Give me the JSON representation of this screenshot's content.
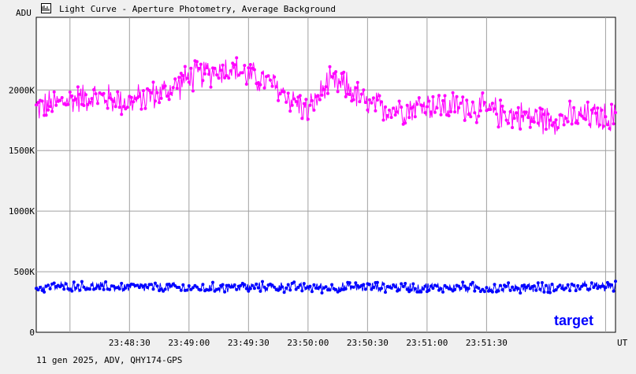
{
  "window": {
    "title": "Light Curve - Aperture Photometry, Average Background",
    "icon": "light-curve-icon"
  },
  "footer": {
    "info": "11 gen 2025, ADV, QHY174-GPS"
  },
  "colors": {
    "background": "#f0f0f0",
    "plot_background": "#ffffff",
    "grid": "#a0a0a0",
    "series_background": "#ff00ff",
    "series_target": "#0000ff"
  },
  "chart_data": {
    "type": "line",
    "ylabel": "ADU",
    "xlabel": "UT",
    "ylim": [
      0,
      2600000
    ],
    "xlim": [
      "23:47:43",
      "23:52:35"
    ],
    "y_ticks": [
      {
        "value": 0,
        "label": "0"
      },
      {
        "value": 500000,
        "label": "500K"
      },
      {
        "value": 1000000,
        "label": "1000K"
      },
      {
        "value": 1500000,
        "label": "1500K"
      },
      {
        "value": 2000000,
        "label": "2000K"
      }
    ],
    "x_ticks": [
      {
        "value": "23:48:00",
        "label": ""
      },
      {
        "value": "23:48:30",
        "label": "23:48:30"
      },
      {
        "value": "23:49:00",
        "label": "23:49:00"
      },
      {
        "value": "23:49:30",
        "label": "23:49:30"
      },
      {
        "value": "23:50:00",
        "label": "23:50:00"
      },
      {
        "value": "23:50:30",
        "label": "23:50:30"
      },
      {
        "value": "23:51:00",
        "label": "23:51:00"
      },
      {
        "value": "23:51:30",
        "label": "23:51:30"
      },
      {
        "value": "23:52:30",
        "label": ""
      }
    ],
    "grid": true,
    "annotation": {
      "text": "target",
      "position": "bottom-right"
    },
    "series": [
      {
        "key": "background",
        "color": "#ff00ff",
        "x": [
          "23:47:43",
          "23:47:50",
          "23:48:00",
          "23:48:10",
          "23:48:20",
          "23:48:30",
          "23:48:40",
          "23:48:50",
          "23:49:00",
          "23:49:10",
          "23:49:20",
          "23:49:30",
          "23:49:40",
          "23:49:50",
          "23:50:00",
          "23:50:10",
          "23:50:20",
          "23:50:30",
          "23:50:40",
          "23:50:50",
          "23:51:00",
          "23:51:10",
          "23:51:20",
          "23:51:30",
          "23:51:40",
          "23:51:50",
          "23:52:00",
          "23:52:10",
          "23:52:20",
          "23:52:35"
        ],
        "y": [
          1850000,
          1880000,
          1920000,
          1950000,
          1930000,
          1900000,
          1950000,
          2000000,
          2100000,
          2150000,
          2180000,
          2120000,
          2060000,
          1950000,
          1820000,
          2050000,
          2030000,
          1870000,
          1850000,
          1850000,
          1880000,
          1860000,
          1870000,
          1830000,
          1800000,
          1780000,
          1760000,
          1770000,
          1780000,
          1770000
        ],
        "spread": 150000
      },
      {
        "key": "target",
        "color": "#0000ff",
        "x": [
          "23:47:43",
          "23:48:00",
          "23:48:20",
          "23:48:40",
          "23:49:00",
          "23:49:20",
          "23:49:40",
          "23:50:00",
          "23:50:20",
          "23:50:40",
          "23:51:00",
          "23:51:20",
          "23:51:40",
          "23:52:00",
          "23:52:20",
          "23:52:35"
        ],
        "y": [
          370000,
          380000,
          375000,
          370000,
          365000,
          370000,
          375000,
          370000,
          370000,
          375000,
          370000,
          370000,
          365000,
          370000,
          375000,
          375000
        ],
        "spread": 50000
      }
    ]
  }
}
